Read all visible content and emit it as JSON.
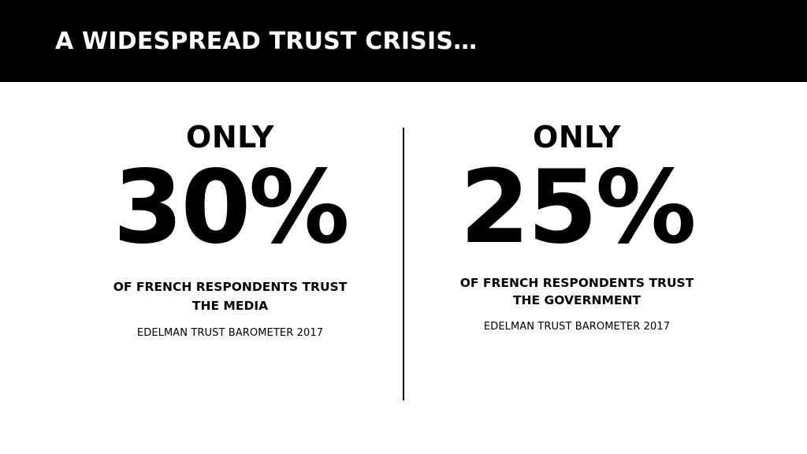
{
  "slide": {
    "title": "A WIDESPREAD TRUST CRISIS…",
    "colors": {
      "header_background": "#000000",
      "header_text": "#ffffff",
      "body_background": "#ffffff",
      "body_text": "#000000"
    },
    "stats": [
      {
        "prefix": "ONLY",
        "value": "30%",
        "line1": "OF FRENCH RESPONDENTS TRUST",
        "line2": "THE MEDIA",
        "source": "EDELMAN TRUST BAROMETER 2017"
      },
      {
        "prefix": "ONLY",
        "value": "25%",
        "line1": "OF FRENCH RESPONDENTS TRUST",
        "line2": "THE GOVERNMENT",
        "source": "EDELMAN TRUST BAROMETER 2017"
      }
    ]
  }
}
